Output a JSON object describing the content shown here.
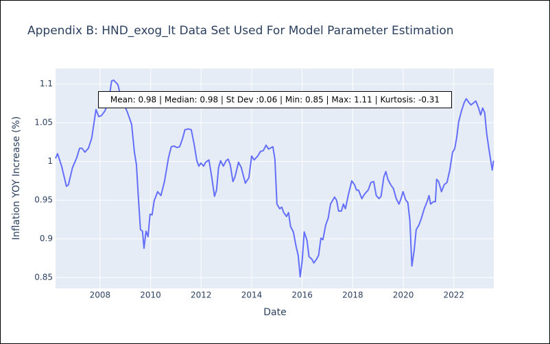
{
  "chart_data": {
    "type": "line",
    "title": "Appendix B: HND_exog_lt Data Set Used For Model Parameter Estimation",
    "x_label": "Date",
    "y_label": "Inflation YOY Increase (%)",
    "annotation": "Mean: 0.98 | Median: 0.98 | St Dev :0.06 | Min: 0.85 | Max: 1.11 | Kurtosis: -0.31",
    "color": "#636efa",
    "grid": true,
    "xlim": [
      2006.24,
      2023.58
    ],
    "xticks": [
      2008,
      2010,
      2012,
      2014,
      2016,
      2018,
      2020,
      2022
    ],
    "ylim": [
      0.836,
      1.12
    ],
    "yticks": [
      0.85,
      0.9,
      0.95,
      1,
      1.05,
      1.1
    ],
    "x": [
      2006.24,
      2006.32,
      2006.48,
      2006.67,
      2006.75,
      2006.91,
      2007.08,
      2007.19,
      2007.29,
      2007.4,
      2007.54,
      2007.67,
      2007.84,
      2007.95,
      2008.05,
      2008.19,
      2008.33,
      2008.46,
      2008.54,
      2008.71,
      2008.81,
      2008.92,
      2009.09,
      2009.25,
      2009.36,
      2009.44,
      2009.52,
      2009.6,
      2009.68,
      2009.74,
      2009.82,
      2009.9,
      2009.98,
      2010.06,
      2010.14,
      2010.28,
      2010.41,
      2010.55,
      2010.71,
      2010.82,
      2010.93,
      2011.04,
      2011.15,
      2011.26,
      2011.36,
      2011.5,
      2011.61,
      2011.72,
      2011.83,
      2011.91,
      2011.99,
      2012.1,
      2012.18,
      2012.31,
      2012.42,
      2012.53,
      2012.61,
      2012.69,
      2012.77,
      2012.88,
      2012.99,
      2013.07,
      2013.15,
      2013.26,
      2013.34,
      2013.48,
      2013.59,
      2013.75,
      2013.89,
      2014.0,
      2014.1,
      2014.24,
      2014.35,
      2014.46,
      2014.57,
      2014.67,
      2014.84,
      2014.92,
      2015.0,
      2015.11,
      2015.19,
      2015.27,
      2015.38,
      2015.46,
      2015.54,
      2015.65,
      2015.76,
      2015.84,
      2015.92,
      2016.0,
      2016.08,
      2016.19,
      2016.27,
      2016.38,
      2016.46,
      2016.57,
      2016.65,
      2016.74,
      2016.82,
      2016.93,
      2017.03,
      2017.12,
      2017.28,
      2017.36,
      2017.44,
      2017.55,
      2017.63,
      2017.71,
      2017.82,
      2017.96,
      2018.07,
      2018.15,
      2018.23,
      2018.36,
      2018.47,
      2018.61,
      2018.72,
      2018.83,
      2018.93,
      2019.04,
      2019.12,
      2019.23,
      2019.31,
      2019.39,
      2019.5,
      2019.61,
      2019.72,
      2019.83,
      2019.91,
      2019.99,
      2020.1,
      2020.18,
      2020.26,
      2020.34,
      2020.43,
      2020.51,
      2020.62,
      2020.72,
      2020.83,
      2020.94,
      2021.02,
      2021.08,
      2021.19,
      2021.27,
      2021.32,
      2021.4,
      2021.51,
      2021.62,
      2021.73,
      2021.84,
      2021.95,
      2022.03,
      2022.11,
      2022.19,
      2022.3,
      2022.41,
      2022.49,
      2022.6,
      2022.68,
      2022.79,
      2022.87,
      2022.98,
      2023.06,
      2023.14,
      2023.22,
      2023.3,
      2023.38,
      2023.46,
      2023.52,
      2023.57
    ],
    "values": [
      1.004,
      1.01,
      0.994,
      0.968,
      0.97,
      0.992,
      1.005,
      1.017,
      1.017,
      1.012,
      1.017,
      1.03,
      1.067,
      1.058,
      1.059,
      1.065,
      1.076,
      1.104,
      1.105,
      1.099,
      1.085,
      1.076,
      1.063,
      1.048,
      1.012,
      0.996,
      0.952,
      0.912,
      0.91,
      0.888,
      0.91,
      0.903,
      0.932,
      0.931,
      0.949,
      0.961,
      0.956,
      0.974,
      1.005,
      1.019,
      1.02,
      1.018,
      1.019,
      1.029,
      1.041,
      1.042,
      1.041,
      1.023,
      1.001,
      0.994,
      0.998,
      0.994,
      0.999,
      1.002,
      0.98,
      0.955,
      0.963,
      0.992,
      1.001,
      0.994,
      1.001,
      1.003,
      0.996,
      0.974,
      0.98,
      0.999,
      0.992,
      0.972,
      0.979,
      1.007,
      1.002,
      1.007,
      1.013,
      1.014,
      1.021,
      1.016,
      1.019,
      1.003,
      0.945,
      0.939,
      0.941,
      0.934,
      0.929,
      0.934,
      0.916,
      0.909,
      0.89,
      0.879,
      0.851,
      0.872,
      0.909,
      0.898,
      0.877,
      0.874,
      0.869,
      0.874,
      0.879,
      0.901,
      0.899,
      0.918,
      0.927,
      0.945,
      0.954,
      0.95,
      0.936,
      0.936,
      0.945,
      0.939,
      0.956,
      0.975,
      0.97,
      0.963,
      0.963,
      0.952,
      0.958,
      0.963,
      0.973,
      0.974,
      0.956,
      0.952,
      0.955,
      0.98,
      0.987,
      0.977,
      0.97,
      0.965,
      0.952,
      0.945,
      0.952,
      0.961,
      0.95,
      0.947,
      0.924,
      0.865,
      0.885,
      0.912,
      0.918,
      0.927,
      0.939,
      0.948,
      0.956,
      0.945,
      0.948,
      0.948,
      0.977,
      0.974,
      0.961,
      0.97,
      0.973,
      0.989,
      1.012,
      1.016,
      1.03,
      1.051,
      1.065,
      1.076,
      1.081,
      1.076,
      1.073,
      1.076,
      1.078,
      1.069,
      1.06,
      1.069,
      1.063,
      1.036,
      1.018,
      1.001,
      0.989,
      1.001
    ]
  }
}
